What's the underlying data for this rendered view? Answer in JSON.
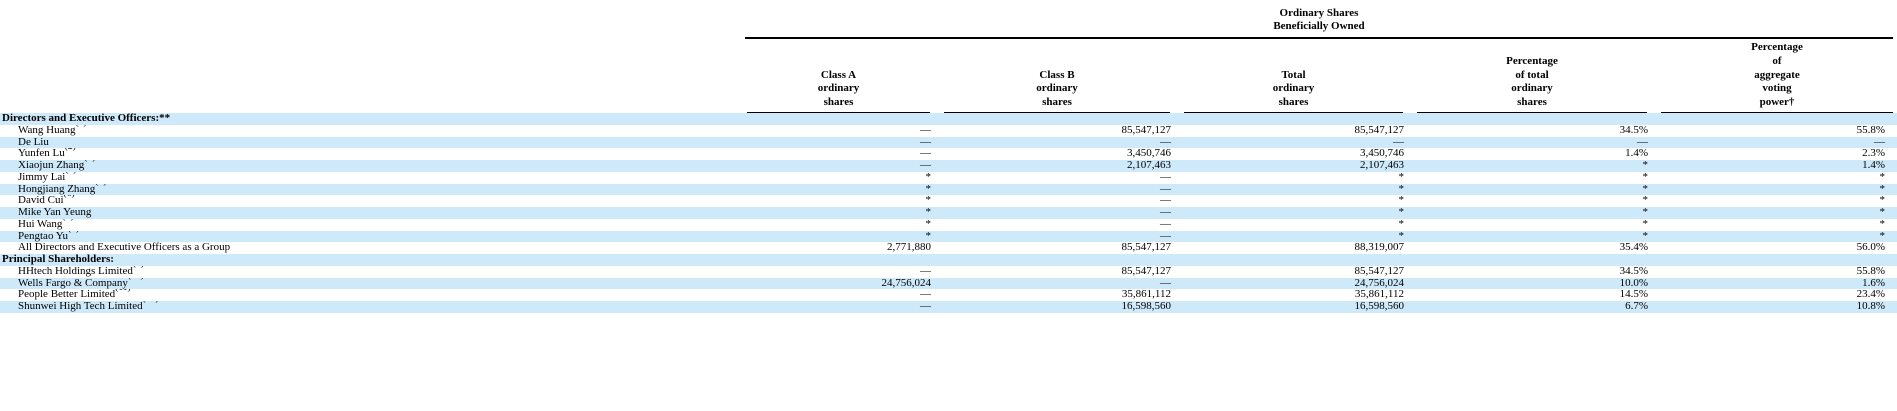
{
  "page": {
    "background_color": "#ffffff",
    "row_shade_color": "#cde9fa",
    "text_color": "#000000"
  },
  "table": {
    "group_header": "Ordinary Shares\nBeneficially Owned",
    "column_headers": [
      "Class A\nordinary\nshares",
      "Class B\nordinary\nshares",
      "Total\nordinary\nshares",
      "Percentage\nof total\nordinary\nshares",
      "Percentage\nof\naggregate\nvoting\npower†"
    ],
    "rows": [
      {
        "label": "Directors and Executive Officers:**",
        "sup": "",
        "section": true,
        "shaded": true,
        "cells": [
          "",
          "",
          "",
          "",
          ""
        ]
      },
      {
        "label": "Wang Huang",
        "sup": "(1)",
        "section": false,
        "shaded": false,
        "cells": [
          "—",
          "85,547,127",
          "85,547,127",
          "34.5%",
          "55.8%"
        ]
      },
      {
        "label": "De Liu",
        "sup": "",
        "section": false,
        "shaded": true,
        "cells": [
          "—",
          "—",
          "—",
          "—",
          "—"
        ]
      },
      {
        "label": "Yunfen Lu",
        "sup": "(2)",
        "section": false,
        "shaded": false,
        "cells": [
          "—",
          "3,450,746",
          "3,450,746",
          "1.4%",
          "2.3%"
        ]
      },
      {
        "label": "Xiaojun Zhang",
        "sup": "(3)",
        "section": false,
        "shaded": true,
        "cells": [
          "—",
          "2,107,463",
          "2,107,463",
          "*",
          "1.4%"
        ]
      },
      {
        "label": "Jimmy Lai",
        "sup": "(4)",
        "section": false,
        "shaded": false,
        "cells": [
          "*",
          "—",
          "*",
          "*",
          "*"
        ]
      },
      {
        "label": "Hongjiang Zhang",
        "sup": "(5)",
        "section": false,
        "shaded": true,
        "cells": [
          "*",
          "—",
          "*",
          "*",
          "*"
        ]
      },
      {
        "label": "David Cui",
        "sup": "(6)",
        "section": false,
        "shaded": false,
        "cells": [
          "*",
          "—",
          "*",
          "*",
          "*"
        ]
      },
      {
        "label": "Mike Yan Yeung",
        "sup": "",
        "section": false,
        "shaded": true,
        "cells": [
          "*",
          "—",
          "*",
          "*",
          "*"
        ]
      },
      {
        "label": "Hui Wang",
        "sup": "(7)",
        "section": false,
        "shaded": false,
        "cells": [
          "*",
          "—",
          "*",
          "*",
          "*"
        ]
      },
      {
        "label": "Pengtao Yu",
        "sup": "(8)",
        "section": false,
        "shaded": true,
        "cells": [
          "*",
          "—",
          "*",
          "*",
          "*"
        ]
      },
      {
        "label": "All Directors and Executive Officers as a Group",
        "sup": "",
        "section": false,
        "shaded": false,
        "cells": [
          "2,771,880",
          "85,547,127",
          "88,319,007",
          "35.4%",
          "56.0%"
        ]
      },
      {
        "label": "Principal Shareholders:",
        "sup": "",
        "section": true,
        "shaded": true,
        "cells": [
          "",
          "",
          "",
          "",
          ""
        ]
      },
      {
        "label": "HHtech Holdings Limited",
        "sup": "(9)",
        "section": false,
        "shaded": false,
        "cells": [
          "—",
          "85,547,127",
          "85,547,127",
          "34.5%",
          "55.8%"
        ]
      },
      {
        "label": "Wells Fargo & Company",
        "sup": "(10)",
        "section": false,
        "shaded": true,
        "cells": [
          "24,756,024",
          "—",
          "24,756,024",
          "10.0%",
          "1.6%"
        ]
      },
      {
        "label": "People Better Limited",
        "sup": "(11)",
        "section": false,
        "shaded": false,
        "cells": [
          "—",
          "35,861,112",
          "35,861,112",
          "14.5%",
          "23.4%"
        ]
      },
      {
        "label": "Shunwei High Tech Limited",
        "sup": "(12)",
        "section": false,
        "shaded": true,
        "cells": [
          "—",
          "16,598,560",
          "16,598,560",
          "6.7%",
          "10.8%"
        ]
      }
    ]
  }
}
